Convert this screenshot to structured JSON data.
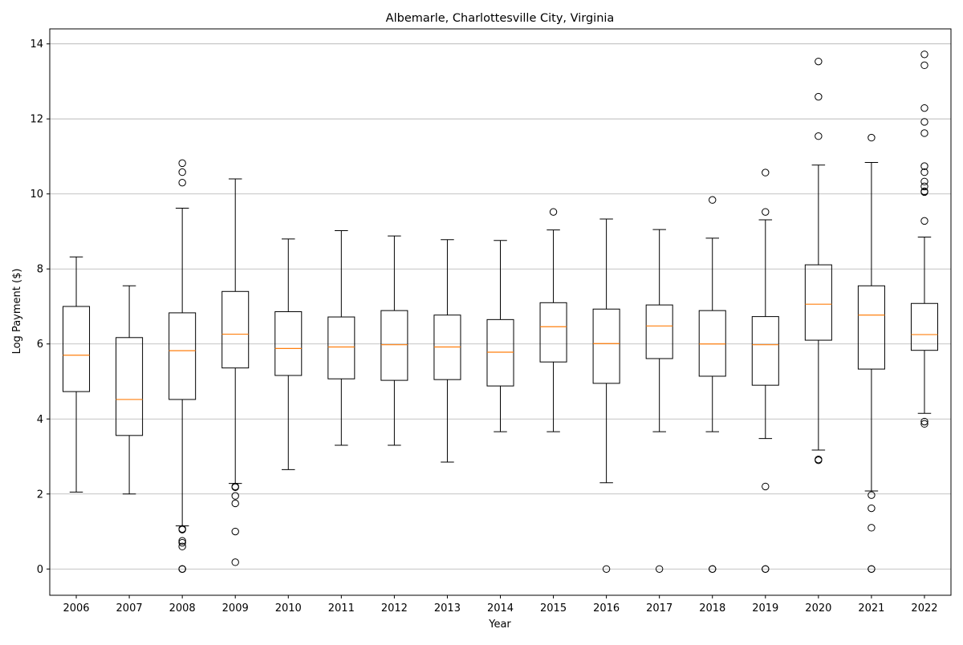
{
  "chart_data": {
    "type": "boxplot",
    "title": "Albemarle, Charlottesville City, Virginia",
    "xlabel": "Year",
    "ylabel": "Log Payment ($)",
    "ylim": [
      -0.7,
      14.4
    ],
    "yticks": [
      0,
      2,
      4,
      6,
      8,
      10,
      12,
      14
    ],
    "grid": "horizontal",
    "colors": {
      "box": "#000000",
      "median": "#ff7f0e",
      "grid": "#b0b0b0"
    },
    "categories": [
      "2006",
      "2007",
      "2008",
      "2009",
      "2010",
      "2011",
      "2012",
      "2013",
      "2014",
      "2015",
      "2016",
      "2017",
      "2018",
      "2019",
      "2020",
      "2021",
      "2022"
    ],
    "boxes": [
      {
        "label": "2006",
        "whisker_low": 2.05,
        "q1": 4.73,
        "median": 5.7,
        "q3": 7.0,
        "whisker_high": 8.32,
        "outliers": []
      },
      {
        "label": "2007",
        "whisker_low": 2.0,
        "q1": 3.56,
        "median": 4.52,
        "q3": 6.17,
        "whisker_high": 7.55,
        "outliers": []
      },
      {
        "label": "2008",
        "whisker_low": 1.15,
        "q1": 4.52,
        "median": 5.82,
        "q3": 6.83,
        "whisker_high": 9.62,
        "outliers": [
          10.82,
          10.58,
          10.3,
          1.07,
          1.05,
          0.75,
          0.7,
          0.6,
          0,
          0,
          0
        ]
      },
      {
        "label": "2009",
        "whisker_low": 2.28,
        "q1": 5.36,
        "median": 6.26,
        "q3": 7.4,
        "whisker_high": 10.4,
        "outliers": [
          2.2,
          2.18,
          1.95,
          1.75,
          1.0,
          0.18
        ]
      },
      {
        "label": "2010",
        "whisker_low": 2.65,
        "q1": 5.16,
        "median": 5.88,
        "q3": 6.86,
        "whisker_high": 8.8,
        "outliers": []
      },
      {
        "label": "2011",
        "whisker_low": 3.3,
        "q1": 5.07,
        "median": 5.92,
        "q3": 6.72,
        "whisker_high": 9.02,
        "outliers": []
      },
      {
        "label": "2012",
        "whisker_low": 3.3,
        "q1": 5.03,
        "median": 5.98,
        "q3": 6.89,
        "whisker_high": 8.88,
        "outliers": []
      },
      {
        "label": "2013",
        "whisker_low": 2.85,
        "q1": 5.05,
        "median": 5.92,
        "q3": 6.77,
        "whisker_high": 8.78,
        "outliers": []
      },
      {
        "label": "2014",
        "whisker_low": 3.66,
        "q1": 4.88,
        "median": 5.78,
        "q3": 6.65,
        "whisker_high": 8.76,
        "outliers": []
      },
      {
        "label": "2015",
        "whisker_low": 3.66,
        "q1": 5.52,
        "median": 6.46,
        "q3": 7.1,
        "whisker_high": 9.04,
        "outliers": [
          9.52
        ]
      },
      {
        "label": "2016",
        "whisker_low": 2.3,
        "q1": 4.95,
        "median": 6.01,
        "q3": 6.93,
        "whisker_high": 9.33,
        "outliers": [
          0
        ]
      },
      {
        "label": "2017",
        "whisker_low": 3.66,
        "q1": 5.61,
        "median": 6.48,
        "q3": 7.04,
        "whisker_high": 9.05,
        "outliers": [
          0
        ]
      },
      {
        "label": "2018",
        "whisker_low": 3.66,
        "q1": 5.14,
        "median": 6.0,
        "q3": 6.89,
        "whisker_high": 8.82,
        "outliers": [
          9.84,
          0,
          0
        ]
      },
      {
        "label": "2019",
        "whisker_low": 3.48,
        "q1": 4.9,
        "median": 5.98,
        "q3": 6.73,
        "whisker_high": 9.31,
        "outliers": [
          10.57,
          9.52,
          2.2,
          0,
          0
        ]
      },
      {
        "label": "2020",
        "whisker_low": 3.17,
        "q1": 6.1,
        "median": 7.06,
        "q3": 8.11,
        "whisker_high": 10.77,
        "outliers": [
          13.53,
          12.59,
          11.54,
          2.92,
          2.9
        ]
      },
      {
        "label": "2021",
        "whisker_low": 2.08,
        "q1": 5.33,
        "median": 6.77,
        "q3": 7.55,
        "whisker_high": 10.84,
        "outliers": [
          11.5,
          1.97,
          1.62,
          1.1,
          0,
          0
        ]
      },
      {
        "label": "2022",
        "whisker_low": 4.15,
        "q1": 5.83,
        "median": 6.25,
        "q3": 7.08,
        "whisker_high": 8.85,
        "outliers": [
          13.72,
          13.43,
          12.29,
          11.92,
          11.62,
          10.74,
          10.58,
          10.33,
          10.2,
          10.07,
          10.05,
          9.28,
          3.93,
          3.87
        ]
      }
    ]
  }
}
